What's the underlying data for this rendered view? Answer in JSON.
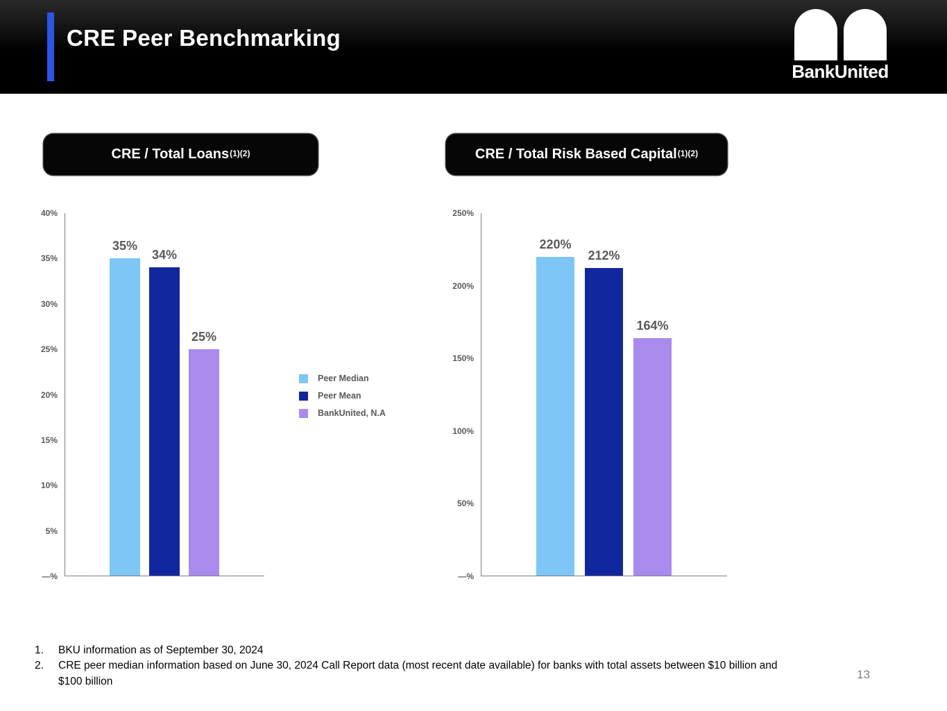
{
  "header": {
    "title": "CRE Peer Benchmarking",
    "brand": "BankUnited"
  },
  "colors": {
    "accent_bar": "#2B55E6",
    "peer_median": "#7DC6F5",
    "peer_mean": "#12279E",
    "bankunited_na": "#A98BEE"
  },
  "legend": {
    "items": [
      {
        "label": "Peer Median",
        "color": "#7DC6F5"
      },
      {
        "label": "Peer Mean",
        "color": "#12279E"
      },
      {
        "label": "BankUnited, N.A",
        "color": "#A98BEE"
      }
    ]
  },
  "chart_data": [
    {
      "type": "bar",
      "title": "CRE / Total Loans",
      "title_superscript": "(1)(2)",
      "categories": [
        "Peer Median",
        "Peer Mean",
        "BankUnited, N.A"
      ],
      "values": [
        35,
        34,
        25
      ],
      "value_labels": [
        "35%",
        "34%",
        "25%"
      ],
      "ylim": [
        0,
        40
      ],
      "ytick_labels": [
        "40%",
        "35%",
        "30%",
        "25%",
        "20%",
        "15%",
        "10%",
        "5%",
        "—%"
      ],
      "colors": [
        "#7DC6F5",
        "#12279E",
        "#A98BEE"
      ],
      "grid": false,
      "legend_position": "right-of-chart"
    },
    {
      "type": "bar",
      "title": "CRE / Total Risk Based Capital",
      "title_superscript": "(1)(2)",
      "categories": [
        "Peer Median",
        "Peer Mean",
        "BankUnited, N.A"
      ],
      "values": [
        220,
        212,
        164
      ],
      "value_labels": [
        "220%",
        "212%",
        "164%"
      ],
      "ylim": [
        0,
        250
      ],
      "ytick_labels": [
        "250%",
        "200%",
        "150%",
        "100%",
        "50%",
        "—%"
      ],
      "colors": [
        "#7DC6F5",
        "#12279E",
        "#A98BEE"
      ],
      "grid": false,
      "legend_position": "left-of-chart"
    }
  ],
  "footnotes": [
    {
      "num": "1.",
      "text": "BKU information as of September 30, 2024"
    },
    {
      "num": "2.",
      "text": "CRE peer median information based on June 30, 2024 Call Report data (most recent date available) for banks with total assets between $10 billion and $100 billion"
    }
  ],
  "page_number": "13"
}
